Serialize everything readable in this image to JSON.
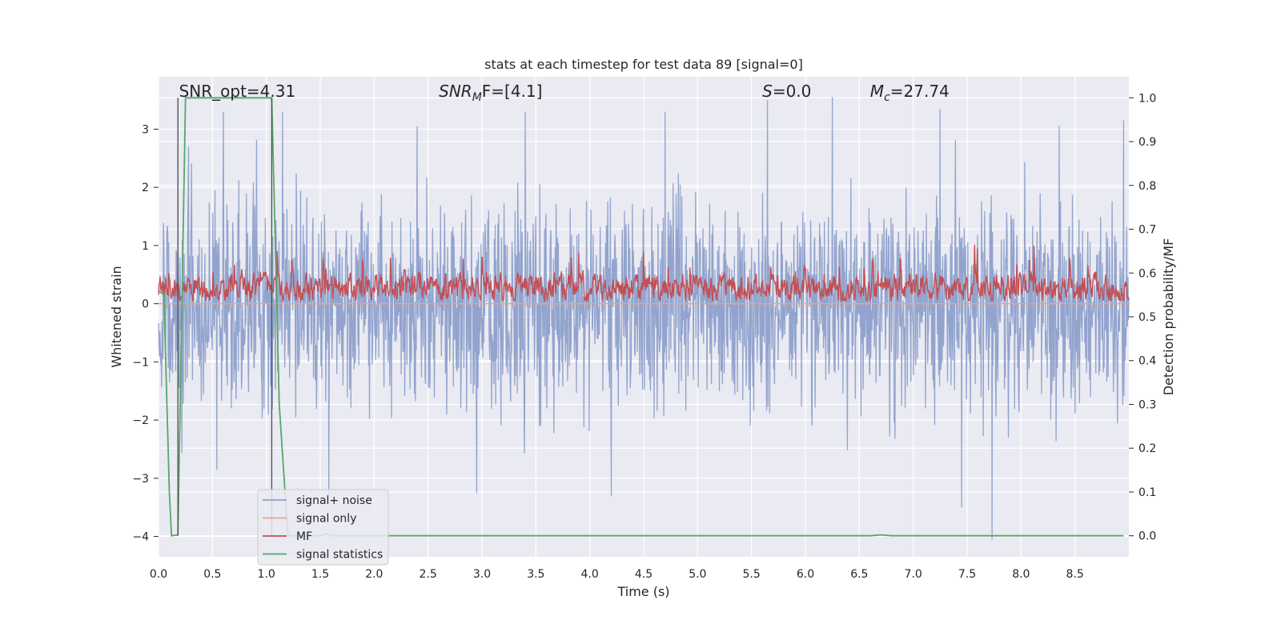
{
  "chart_data": {
    "type": "line",
    "title": "stats at each timestep for test data 89 [signal=0]",
    "xlabel": "Time (s)",
    "ylabel_left": "Whitened strain",
    "ylabel_right": "Detection probability/MF",
    "xlim": [
      0.0,
      9.0
    ],
    "ylim_left": [
      -4.35,
      3.9
    ],
    "ylim_right": [
      -0.048,
      1.048
    ],
    "x_ticks": [
      "0.0",
      "0.5",
      "1.0",
      "1.5",
      "2.0",
      "2.5",
      "3.0",
      "3.5",
      "4.0",
      "4.5",
      "5.0",
      "5.5",
      "6.0",
      "6.5",
      "7.0",
      "7.5",
      "8.0",
      "8.5"
    ],
    "y_left_ticks": [
      "3",
      "2",
      "1",
      "0",
      "−1",
      "−2",
      "−3",
      "−4"
    ],
    "y_right_ticks": [
      "1.0",
      "0.9",
      "0.8",
      "0.7",
      "0.6",
      "0.5",
      "0.4",
      "0.3",
      "0.2",
      "0.1",
      "0.0"
    ],
    "grid": true,
    "legend_placement": "lower-left",
    "annotations": [
      {
        "key": "snr_opt",
        "text": "SNR_opt=4.31",
        "x": 0.19
      },
      {
        "key": "snr_mf",
        "prefix": "SNR",
        "sub": "M",
        "suffix": "F=[4.1]",
        "x": 2.6
      },
      {
        "key": "s",
        "prefix": "S",
        "suffix": "=0.0",
        "x": 5.6
      },
      {
        "key": "mc",
        "prefix": "M",
        "sub": "c",
        "suffix": "=27.74",
        "x": 6.6
      }
    ],
    "vertical_markers": [
      {
        "x": 0.18,
        "axis": "right",
        "from": 0.0,
        "to": 1.0
      },
      {
        "x": 1.05,
        "axis": "right",
        "from": 0.0,
        "to": 1.0
      }
    ],
    "series": [
      {
        "name": "signal+ noise",
        "color": "#8da0cb",
        "axis": "left",
        "kind": "noise",
        "duration": 9.0,
        "sample_count": 2200,
        "envelope": {
          "typical_abs": 1.6,
          "max": 3.6,
          "min": -4.05
        },
        "spikes": [
          {
            "x": 0.28,
            "y": 2.7
          },
          {
            "x": 0.6,
            "y": 3.3
          },
          {
            "x": 1.15,
            "y": 3.3
          },
          {
            "x": 2.4,
            "y": 3.05
          },
          {
            "x": 3.4,
            "y": 3.3
          },
          {
            "x": 4.7,
            "y": 3.3
          },
          {
            "x": 5.65,
            "y": 3.5
          },
          {
            "x": 6.25,
            "y": 3.55
          },
          {
            "x": 7.25,
            "y": 3.35
          },
          {
            "x": 8.95,
            "y": 3.15
          },
          {
            "x": 1.58,
            "y": -3.3
          },
          {
            "x": 2.95,
            "y": -3.25
          },
          {
            "x": 4.2,
            "y": -3.3
          },
          {
            "x": 7.45,
            "y": -3.5
          },
          {
            "x": 7.73,
            "y": -4.05
          }
        ]
      },
      {
        "name": "signal only",
        "color": "#e8a58a",
        "axis": "left",
        "kind": "flat",
        "y": 0.0
      },
      {
        "name": "MF",
        "color": "#c44e52",
        "axis": "right",
        "kind": "noise",
        "duration": 9.0,
        "sample_count": 1800,
        "envelope": {
          "mean": 0.565,
          "min": 0.537,
          "max": 0.665
        }
      },
      {
        "name": "signal statistics",
        "color": "#55a868",
        "axis": "right",
        "kind": "line",
        "x": [
          0.0,
          0.05,
          0.1,
          0.12,
          0.18,
          0.25,
          1.05,
          1.12,
          1.2,
          1.5,
          1.55,
          1.6,
          2.0,
          6.6,
          6.7,
          6.8,
          8.95
        ],
        "y": [
          0.56,
          0.55,
          0.1,
          0.0,
          0.002,
          1.0,
          1.0,
          0.3,
          0.0,
          0.0,
          0.005,
          0.0,
          0.0,
          0.0,
          0.002,
          0.0,
          0.0
        ]
      }
    ]
  }
}
